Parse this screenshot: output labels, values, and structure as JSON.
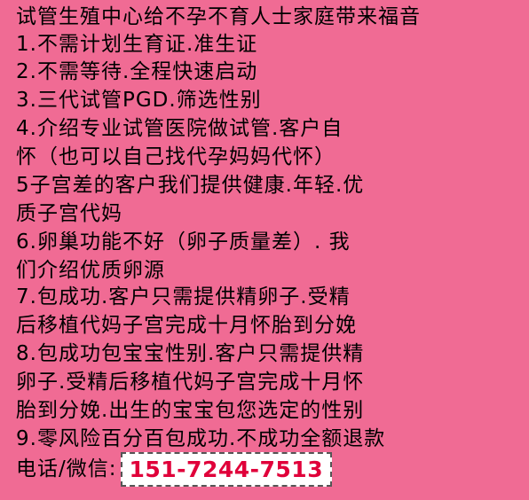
{
  "lines": [
    "试管生殖中心给不孕不育人士家庭带来福音",
    "1.不需计划生育证.准生证",
    "2.不需等待.全程快速启动",
    "3.三代试管PGD.筛选性别",
    "4.介绍专业试管医院做试管.客户自",
    "怀（也可以自己找代孕妈妈代怀）",
    "5子宫差的客户我们提供健康.年轻.优",
    "质子宫代妈",
    "6.卵巢功能不好（卵子质量差）. 我",
    "们介绍优质卵源",
    "7.包成功.客户只需提供精卵子.受精",
    "后移植代妈子宫完成十月怀胎到分娩",
    "8.包成功包宝宝性别.客户只需提供精",
    "卵子.受精后移植代妈子宫完成十月怀",
    "胎到分娩.出生的宝宝包您选定的性别",
    "9.零风险百分百包成功.不成功全额退款"
  ],
  "contact": {
    "label": "电话/微信:",
    "phone": "151-7244-7513"
  },
  "colors": {
    "background": "#f06b94",
    "text": "#000000",
    "phone_text": "#e0003a"
  }
}
